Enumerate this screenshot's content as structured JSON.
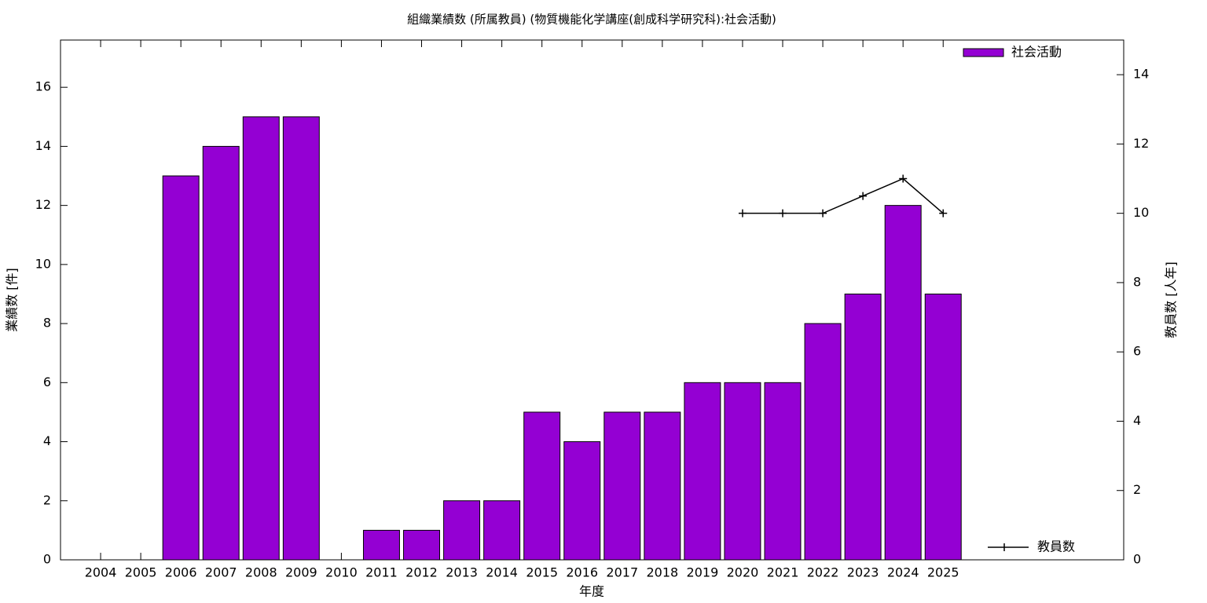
{
  "chart_data": {
    "type": "bar",
    "title": "組織業績数 (所属教員) (物質機能化学講座(創成科学研究科):社会活動)",
    "xlabel": "年度",
    "ylabel": "業績数 [件]",
    "y2label": "教員数 [人年]",
    "categories": [
      "2004",
      "2005",
      "2006",
      "2007",
      "2008",
      "2009",
      "2010",
      "2011",
      "2012",
      "2013",
      "2014",
      "2015",
      "2016",
      "2017",
      "2018",
      "2019",
      "2020",
      "2021",
      "2022",
      "2023",
      "2024",
      "2025"
    ],
    "series": [
      {
        "name": "社会活動",
        "type": "bar",
        "color": "#9400d3",
        "values": [
          0,
          0,
          13,
          14,
          15,
          15,
          0,
          1,
          1,
          2,
          2,
          5,
          4,
          5,
          5,
          6,
          6,
          6,
          8,
          9,
          12,
          9
        ]
      },
      {
        "name": "教員数",
        "type": "line",
        "axis": "y2",
        "color": "#000000",
        "values": [
          null,
          null,
          null,
          null,
          null,
          null,
          null,
          null,
          null,
          null,
          null,
          null,
          null,
          null,
          null,
          null,
          10,
          10,
          10,
          10.5,
          11,
          10
        ]
      }
    ],
    "ylim": [
      0,
      17.6
    ],
    "yticks": [
      0,
      2,
      4,
      6,
      8,
      10,
      12,
      14,
      16
    ],
    "y2lim": [
      0,
      15
    ],
    "y2ticks": [
      0,
      2,
      4,
      6,
      8,
      10,
      12,
      14
    ]
  }
}
